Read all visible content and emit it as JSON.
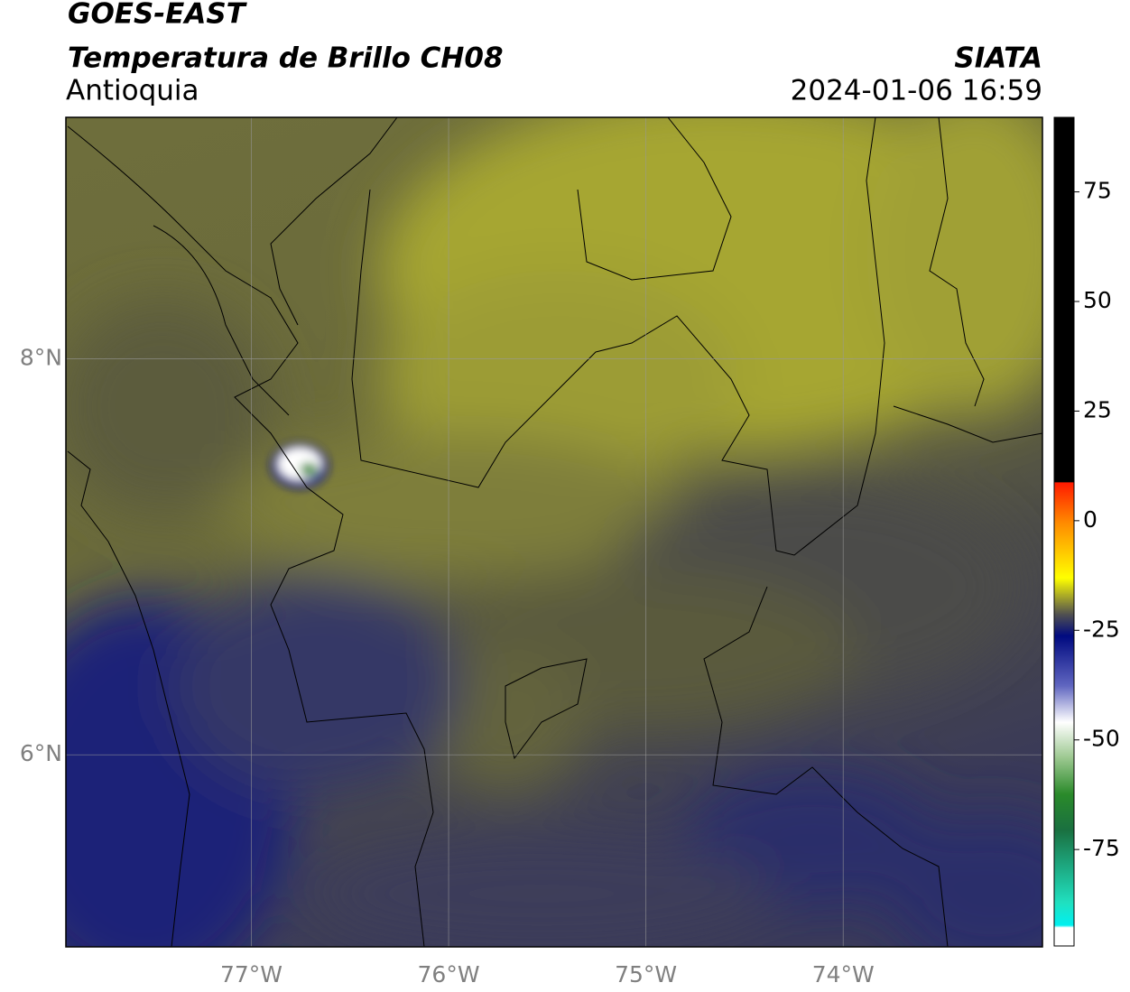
{
  "header": {
    "title": "GOES-EAST",
    "subtitle": "Temperatura de Brillo CH08",
    "region": "Antioquia",
    "source": "SIATA",
    "datetime": "2024-01-06 16:59"
  },
  "map": {
    "xlim": [
      -77.94,
      -72.99
    ],
    "ylim": [
      5.03,
      9.22
    ],
    "xticks": [
      {
        "value": -77,
        "label": "77°W"
      },
      {
        "value": -76,
        "label": "76°W"
      },
      {
        "value": -75,
        "label": "75°W"
      },
      {
        "value": -74,
        "label": "74°W"
      }
    ],
    "yticks": [
      {
        "value": 8,
        "label": "8°N"
      },
      {
        "value": 6,
        "label": "6°N"
      }
    ],
    "grid": true
  },
  "colorbar": {
    "lim": [
      -97,
      92
    ],
    "ticks": [
      75,
      50,
      25,
      0,
      -25,
      -50,
      -75
    ]
  }
}
